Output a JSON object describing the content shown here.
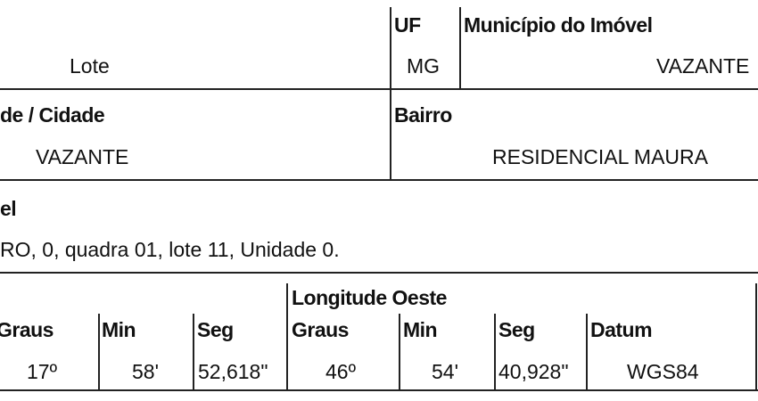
{
  "row1": {
    "lote": "Lote",
    "uf_label": "UF",
    "uf_value": "MG",
    "municipio_label": "Município do Imóvel",
    "municipio_value": "VAZANTE"
  },
  "row2": {
    "cidade_label": "de / Cidade",
    "cidade_value": "VAZANTE",
    "bairro_label": "Bairro",
    "bairro_value": "RESIDENCIAL MAURA"
  },
  "row3": {
    "label": "el",
    "value": "RO, 0, quadra 01, lote 11, Unidade 0."
  },
  "coords": {
    "longitude_label": "Longitude Oeste",
    "headers": [
      "Graus",
      "Min",
      "Seg",
      "Graus",
      "Min",
      "Seg",
      "Datum"
    ],
    "values": [
      "17º",
      "58'",
      "52,618\"",
      "46º",
      "54'",
      "40,928\"",
      "WGS84"
    ]
  }
}
